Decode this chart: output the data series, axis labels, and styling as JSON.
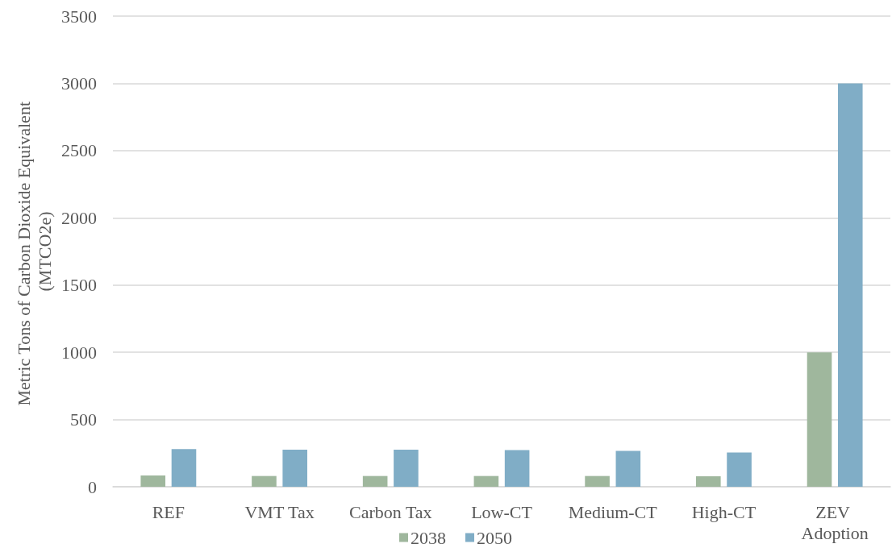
{
  "chart_data": {
    "type": "bar",
    "ylabel": "Metric Tons of Carbon Dioxide Equivalent (MTCO2e)",
    "categories": [
      "REF",
      "VMT Tax",
      "Carbon Tax",
      "Low-CT",
      "Medium-CT",
      "High-CT",
      "ZEV Adoption"
    ],
    "series": [
      {
        "name": "2038",
        "color": "#9fb79d",
        "values": [
          84,
          80,
          80,
          80,
          80,
          78,
          1000
        ]
      },
      {
        "name": "2050",
        "color": "#80adc6",
        "values": [
          280,
          276,
          276,
          272,
          266,
          254,
          3000
        ]
      }
    ],
    "ylim": [
      0,
      3500
    ],
    "yticks": [
      0,
      500,
      1000,
      1500,
      2000,
      2500,
      3000,
      3500
    ],
    "grid": "y",
    "legend": "bottom"
  }
}
